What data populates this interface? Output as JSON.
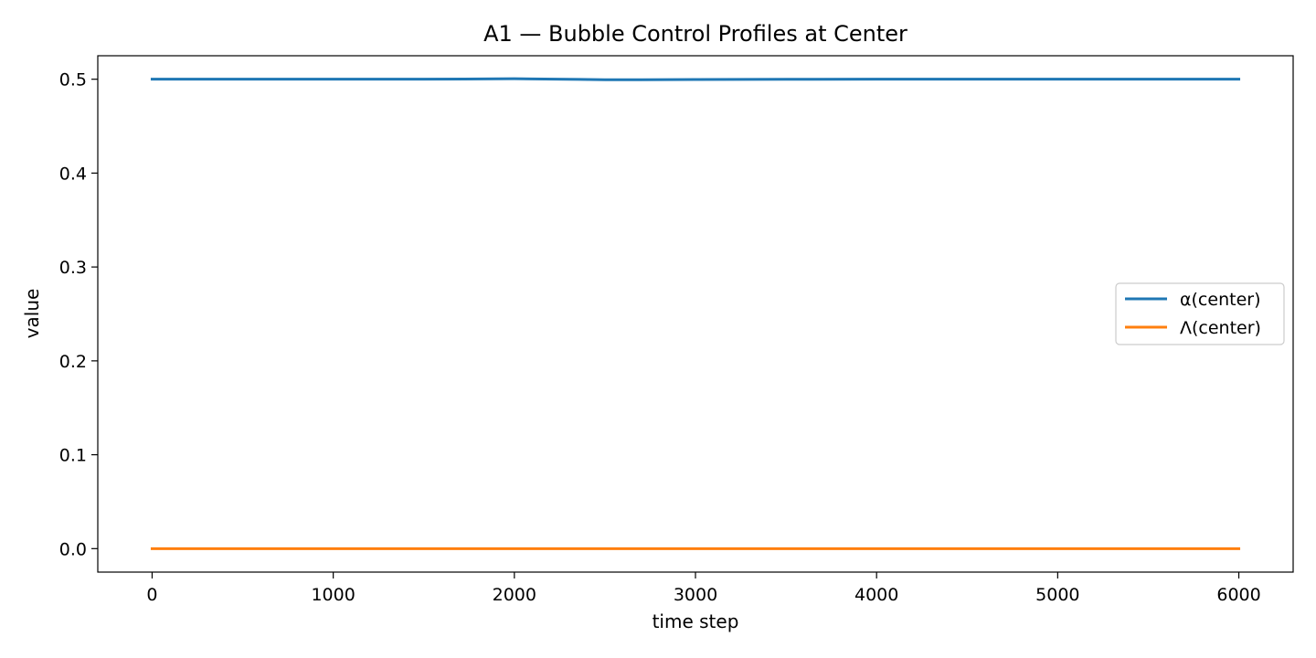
{
  "chart_data": {
    "type": "line",
    "title": "A1 — Bubble Control Profiles at Center",
    "xlabel": "time step",
    "ylabel": "value",
    "xlim": [
      -300,
      6300
    ],
    "ylim": [
      -0.025,
      0.525
    ],
    "xticks": [
      0,
      1000,
      2000,
      3000,
      4000,
      5000,
      6000
    ],
    "xtick_labels": [
      "0",
      "1000",
      "2000",
      "3000",
      "4000",
      "5000",
      "6000"
    ],
    "yticks": [
      0.0,
      0.1,
      0.2,
      0.3,
      0.4,
      0.5
    ],
    "ytick_labels": [
      "0.0",
      "0.1",
      "0.2",
      "0.3",
      "0.4",
      "0.5"
    ],
    "grid": false,
    "legend_position": "center-right",
    "series": [
      {
        "name": "α(center)",
        "color": "#1f77b4",
        "x": [
          0,
          500,
          1000,
          1500,
          2000,
          2100,
          2300,
          2500,
          2700,
          3000,
          3500,
          4000,
          4500,
          5000,
          5500,
          6000
        ],
        "y": [
          0.5,
          0.5,
          0.5,
          0.5,
          0.5005,
          0.5003,
          0.4999,
          0.4995,
          0.4995,
          0.4997,
          0.4999,
          0.5,
          0.5,
          0.5,
          0.5,
          0.5
        ]
      },
      {
        "name": "Λ(center)",
        "color": "#ff7f0e",
        "x": [
          0,
          1000,
          2000,
          3000,
          4000,
          5000,
          6000
        ],
        "y": [
          0.0,
          0.0,
          0.0,
          0.0,
          0.0,
          0.0,
          0.0
        ]
      }
    ]
  }
}
